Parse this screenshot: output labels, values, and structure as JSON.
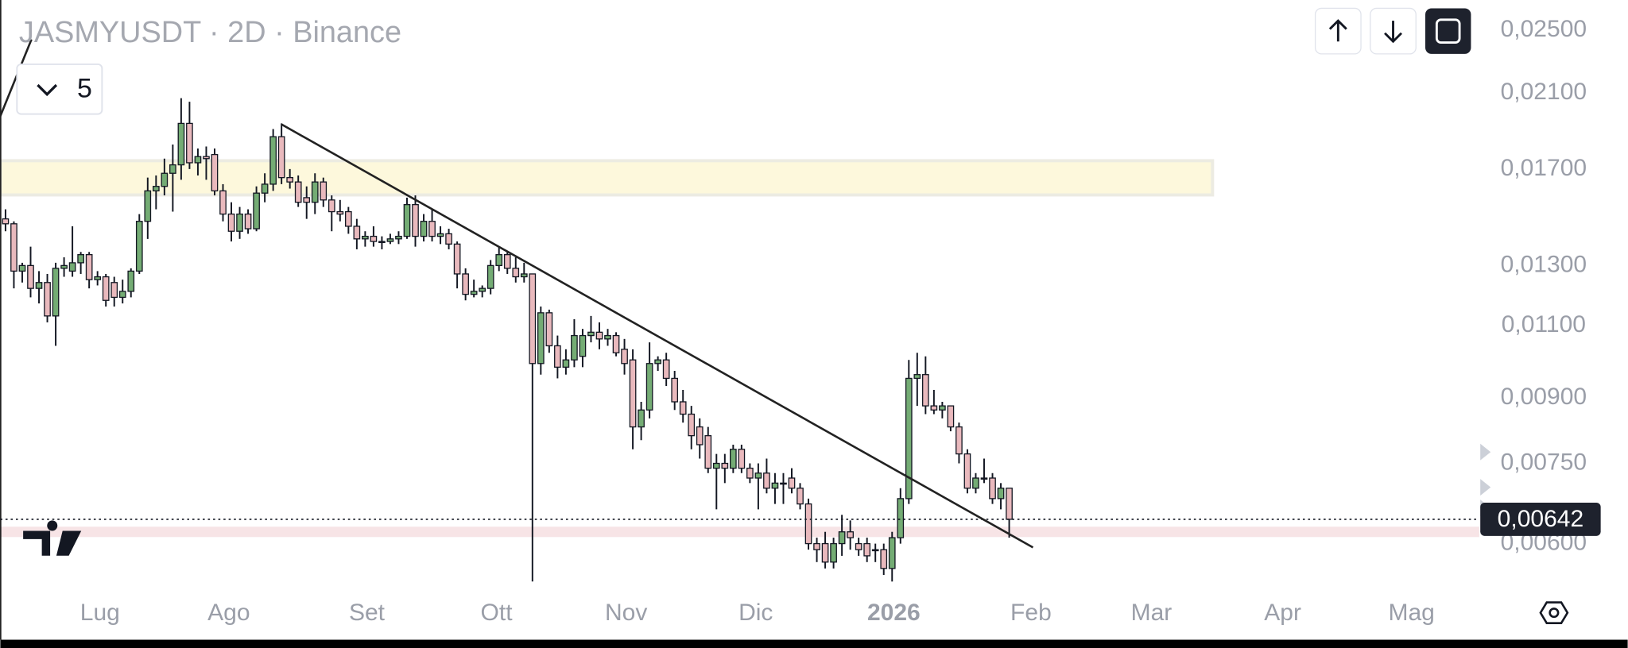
{
  "chart_data": {
    "type": "candlestick",
    "title": "JASMYUSDT · 2D · Binance",
    "indicator_count": "5",
    "log_scale": true,
    "up_color": "#74ac74",
    "down_color": "#e9b9bd",
    "ylim": [
      0.00526,
      0.0272
    ],
    "yticks": [
      {
        "value": 0.025,
        "label": "0,02500"
      },
      {
        "value": 0.021,
        "label": "0,02100"
      },
      {
        "value": 0.017,
        "label": "0,01700"
      },
      {
        "value": 0.013,
        "label": "0,01300"
      },
      {
        "value": 0.011,
        "label": "0,01100"
      },
      {
        "value": 0.009,
        "label": "0,00900"
      },
      {
        "value": 0.0075,
        "label": "0,00750"
      },
      {
        "value": 0.006,
        "label": "0,00600"
      }
    ],
    "xlim": [
      -0.62,
      176.2
    ],
    "xticks": [
      {
        "value": 11.3,
        "label": "Lug"
      },
      {
        "value": 26.7,
        "label": "Ago"
      },
      {
        "value": 43.2,
        "label": "Set"
      },
      {
        "value": 58.7,
        "label": "Ott"
      },
      {
        "value": 74.2,
        "label": "Nov"
      },
      {
        "value": 89.7,
        "label": "Dic"
      },
      {
        "value": 106.2,
        "label": "2026"
      },
      {
        "value": 122.6,
        "label": "Feb"
      },
      {
        "value": 137,
        "label": "Mar"
      },
      {
        "value": 152.7,
        "label": "Apr"
      },
      {
        "value": 168.1,
        "label": "Mag"
      }
    ],
    "last_price": {
      "value": 0.00642,
      "label": "0,00642"
    },
    "ohlc": [
      [
        0.0148,
        0.0152,
        0.0143,
        0.0146
      ],
      [
        0.0146,
        0.0147,
        0.0122,
        0.0128
      ],
      [
        0.0128,
        0.0131,
        0.0124,
        0.013
      ],
      [
        0.013,
        0.0137,
        0.0119,
        0.0122
      ],
      [
        0.0122,
        0.0128,
        0.0117,
        0.0124
      ],
      [
        0.0124,
        0.0127,
        0.0111,
        0.0113
      ],
      [
        0.0113,
        0.0131,
        0.0104,
        0.0129
      ],
      [
        0.0129,
        0.0133,
        0.0126,
        0.013
      ],
      [
        0.0128,
        0.0145,
        0.0126,
        0.0131
      ],
      [
        0.0131,
        0.0135,
        0.0127,
        0.0134
      ],
      [
        0.0134,
        0.0135,
        0.0122,
        0.0125
      ],
      [
        0.0125,
        0.0128,
        0.0123,
        0.0126
      ],
      [
        0.0126,
        0.0127,
        0.0116,
        0.0118
      ],
      [
        0.0124,
        0.0126,
        0.0116,
        0.0119
      ],
      [
        0.0119,
        0.0125,
        0.0117,
        0.0121
      ],
      [
        0.0121,
        0.0129,
        0.0119,
        0.0128
      ],
      [
        0.0128,
        0.015,
        0.0127,
        0.0147
      ],
      [
        0.0147,
        0.0166,
        0.014,
        0.016
      ],
      [
        0.016,
        0.0167,
        0.0152,
        0.0162
      ],
      [
        0.0162,
        0.0175,
        0.0158,
        0.0168
      ],
      [
        0.0168,
        0.0182,
        0.0151,
        0.0172
      ],
      [
        0.0172,
        0.0207,
        0.0165,
        0.0193
      ],
      [
        0.0193,
        0.0205,
        0.017,
        0.0173
      ],
      [
        0.0173,
        0.018,
        0.0167,
        0.0176
      ],
      [
        0.0176,
        0.0181,
        0.0165,
        0.0175
      ],
      [
        0.0177,
        0.018,
        0.0158,
        0.016
      ],
      [
        0.016,
        0.0163,
        0.0147,
        0.015
      ],
      [
        0.015,
        0.0155,
        0.0139,
        0.0143
      ],
      [
        0.0143,
        0.0153,
        0.014,
        0.015
      ],
      [
        0.015,
        0.0152,
        0.0142,
        0.0144
      ],
      [
        0.0144,
        0.0162,
        0.0143,
        0.0159
      ],
      [
        0.0159,
        0.0168,
        0.0155,
        0.0163
      ],
      [
        0.0163,
        0.019,
        0.016,
        0.0186
      ],
      [
        0.0186,
        0.0193,
        0.0163,
        0.0166
      ],
      [
        0.0166,
        0.017,
        0.0161,
        0.0164
      ],
      [
        0.0164,
        0.0167,
        0.0153,
        0.0155
      ],
      [
        0.0157,
        0.0162,
        0.0148,
        0.0155
      ],
      [
        0.0155,
        0.0168,
        0.015,
        0.0164
      ],
      [
        0.0164,
        0.0166,
        0.0153,
        0.0156
      ],
      [
        0.0156,
        0.0158,
        0.0143,
        0.0151
      ],
      [
        0.0151,
        0.0156,
        0.0147,
        0.015
      ],
      [
        0.0151,
        0.0153,
        0.0142,
        0.0145
      ],
      [
        0.0145,
        0.0148,
        0.0136,
        0.014
      ],
      [
        0.014,
        0.0143,
        0.0137,
        0.0141
      ],
      [
        0.0141,
        0.0145,
        0.0137,
        0.0139
      ],
      [
        0.0139,
        0.0141,
        0.0136,
        0.0139
      ],
      [
        0.0139,
        0.0142,
        0.0138,
        0.014
      ],
      [
        0.014,
        0.0143,
        0.0138,
        0.0141
      ],
      [
        0.0141,
        0.0157,
        0.014,
        0.0154
      ],
      [
        0.0154,
        0.0158,
        0.0137,
        0.0141
      ],
      [
        0.0141,
        0.015,
        0.0139,
        0.0147
      ],
      [
        0.0147,
        0.0152,
        0.0139,
        0.0141
      ],
      [
        0.0141,
        0.0145,
        0.0138,
        0.0142
      ],
      [
        0.0142,
        0.0144,
        0.0136,
        0.0138
      ],
      [
        0.0138,
        0.0139,
        0.0122,
        0.0127
      ],
      [
        0.0127,
        0.0129,
        0.0118,
        0.012
      ],
      [
        0.012,
        0.0125,
        0.0119,
        0.0121
      ],
      [
        0.0121,
        0.0123,
        0.0119,
        0.0122
      ],
      [
        0.0122,
        0.0132,
        0.012,
        0.013
      ],
      [
        0.013,
        0.0137,
        0.0128,
        0.0134
      ],
      [
        0.0134,
        0.0135,
        0.0127,
        0.0129
      ],
      [
        0.0129,
        0.0133,
        0.0124,
        0.0126
      ],
      [
        0.0126,
        0.0131,
        0.0124,
        0.0127
      ],
      [
        0.0127,
        0.0127,
        0.0054,
        0.0099
      ],
      [
        0.0099,
        0.0116,
        0.0096,
        0.0114
      ],
      [
        0.0114,
        0.0115,
        0.0102,
        0.0104
      ],
      [
        0.0104,
        0.0107,
        0.0095,
        0.0098
      ],
      [
        0.0098,
        0.0103,
        0.0096,
        0.01
      ],
      [
        0.01,
        0.0112,
        0.0098,
        0.0107
      ],
      [
        0.0101,
        0.0109,
        0.0098,
        0.0107
      ],
      [
        0.0107,
        0.0113,
        0.0105,
        0.0108
      ],
      [
        0.0108,
        0.0111,
        0.0103,
        0.0106
      ],
      [
        0.0106,
        0.0109,
        0.0104,
        0.0107
      ],
      [
        0.0107,
        0.0108,
        0.0101,
        0.0102
      ],
      [
        0.0103,
        0.0106,
        0.0096,
        0.0099
      ],
      [
        0.01,
        0.0103,
        0.0078,
        0.0083
      ],
      [
        0.0083,
        0.0089,
        0.008,
        0.0087
      ],
      [
        0.0087,
        0.0105,
        0.0085,
        0.0099
      ],
      [
        0.0099,
        0.0101,
        0.0097,
        0.01
      ],
      [
        0.01,
        0.0102,
        0.0093,
        0.0095
      ],
      [
        0.0095,
        0.0097,
        0.0087,
        0.0089
      ],
      [
        0.0089,
        0.0092,
        0.0084,
        0.0086
      ],
      [
        0.0086,
        0.0088,
        0.0078,
        0.0081
      ],
      [
        0.0083,
        0.0085,
        0.0076,
        0.0079
      ],
      [
        0.0081,
        0.0083,
        0.0073,
        0.0074
      ],
      [
        0.0074,
        0.0077,
        0.0066,
        0.0075
      ],
      [
        0.0075,
        0.0077,
        0.0071,
        0.0074
      ],
      [
        0.0074,
        0.0079,
        0.0073,
        0.0078
      ],
      [
        0.0078,
        0.0079,
        0.0073,
        0.0074
      ],
      [
        0.0074,
        0.0075,
        0.0071,
        0.0072
      ],
      [
        0.0072,
        0.0075,
        0.0066,
        0.0073
      ],
      [
        0.0073,
        0.0076,
        0.0069,
        0.007
      ],
      [
        0.007,
        0.0073,
        0.0067,
        0.0071
      ],
      [
        0.0071,
        0.0073,
        0.0067,
        0.0071
      ],
      [
        0.0072,
        0.0074,
        0.0069,
        0.007
      ],
      [
        0.007,
        0.0071,
        0.0066,
        0.0067
      ],
      [
        0.0067,
        0.0068,
        0.0059,
        0.006
      ],
      [
        0.006,
        0.0061,
        0.0057,
        0.0059
      ],
      [
        0.006,
        0.0062,
        0.0056,
        0.0057
      ],
      [
        0.0057,
        0.0061,
        0.0056,
        0.006
      ],
      [
        0.006,
        0.0065,
        0.0058,
        0.0062
      ],
      [
        0.0062,
        0.0064,
        0.0059,
        0.0061
      ],
      [
        0.006,
        0.0061,
        0.0058,
        0.0059
      ],
      [
        0.006,
        0.0061,
        0.0057,
        0.0058
      ],
      [
        0.0059,
        0.006,
        0.0057,
        0.0059
      ],
      [
        0.0059,
        0.006,
        0.0055,
        0.0056
      ],
      [
        0.0056,
        0.0062,
        0.0054,
        0.0061
      ],
      [
        0.0061,
        0.007,
        0.006,
        0.0068
      ],
      [
        0.0068,
        0.01,
        0.0067,
        0.0095
      ],
      [
        0.0095,
        0.0102,
        0.0088,
        0.0096
      ],
      [
        0.0096,
        0.0101,
        0.0086,
        0.0088
      ],
      [
        0.0088,
        0.0092,
        0.0086,
        0.0087
      ],
      [
        0.0087,
        0.0089,
        0.0085,
        0.0088
      ],
      [
        0.0088,
        0.0088,
        0.0082,
        0.0083
      ],
      [
        0.0083,
        0.0084,
        0.0075,
        0.0077
      ],
      [
        0.0077,
        0.0078,
        0.0069,
        0.007
      ],
      [
        0.007,
        0.0073,
        0.0069,
        0.0072
      ],
      [
        0.0072,
        0.0076,
        0.0071,
        0.0072
      ],
      [
        0.0072,
        0.0073,
        0.0067,
        0.0068
      ],
      [
        0.0068,
        0.0071,
        0.0066,
        0.007
      ],
      [
        0.007,
        0.007,
        0.0061,
        0.00642
      ]
    ]
  }
}
